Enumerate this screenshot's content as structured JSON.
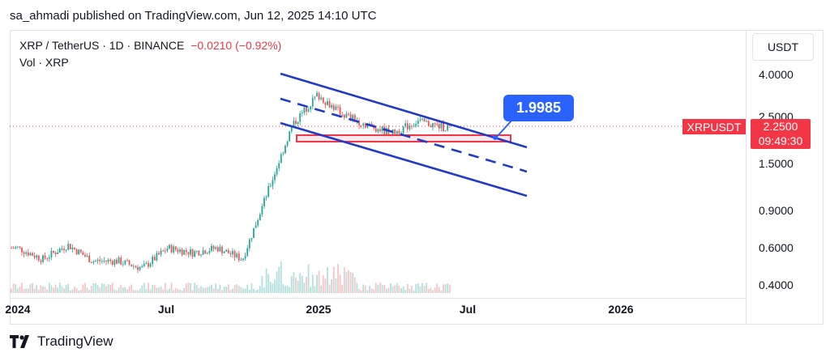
{
  "publisher_line": "sa_ahmadi published on TradingView.com, Jun 12, 2025 14:10 UTC",
  "legend": {
    "symbol_line": "XRP / TetherUS · 1D · BINANCE",
    "change": "−0.0210 (−0.92%)",
    "volume_line": "Vol · XRP"
  },
  "currency_button": "USDT",
  "price_axis": {
    "ticks": [
      "4.0000",
      "2.5000",
      "1.5000",
      "0.9000",
      "0.6000",
      "0.4000"
    ]
  },
  "time_axis": {
    "ticks": [
      "2024",
      "Jul",
      "2025",
      "Jul",
      "2026"
    ]
  },
  "current": {
    "symbol": "XRPUSDT",
    "price": "2.2500",
    "countdown": "09:49:30"
  },
  "callout": "1.9985",
  "brand": "TradingView",
  "colors": {
    "up": "#26a69a",
    "down": "#ef5350",
    "channel": "#1e3cc8",
    "accent": "#2962ff",
    "price_label": "#f23645"
  },
  "chart_data": {
    "type": "candlestick",
    "symbol": "XRP / TetherUS",
    "timeframe": "1D",
    "exchange": "BINANCE",
    "y_scale": "log",
    "y_ticks": [
      4.0,
      2.5,
      1.5,
      0.9,
      0.6,
      0.4
    ],
    "x_ticks": [
      "2024",
      "Jul",
      "2025",
      "Jul",
      "2026"
    ],
    "last_price": 2.25,
    "change": -0.021,
    "change_pct": -0.92,
    "price_path": [
      {
        "date": "2024-01",
        "close": 0.6
      },
      {
        "date": "2024-02",
        "close": 0.53
      },
      {
        "date": "2024-03",
        "close": 0.62
      },
      {
        "date": "2024-04",
        "close": 0.52
      },
      {
        "date": "2024-05",
        "close": 0.52
      },
      {
        "date": "2024-06",
        "close": 0.48
      },
      {
        "date": "2024-07",
        "close": 0.6
      },
      {
        "date": "2024-08",
        "close": 0.57
      },
      {
        "date": "2024-09",
        "close": 0.6
      },
      {
        "date": "2024-10",
        "close": 0.53
      },
      {
        "date": "2024-11",
        "close": 1.1
      },
      {
        "date": "2024-12",
        "close": 2.3
      },
      {
        "date": "2025-01",
        "close": 3.2
      },
      {
        "date": "2025-02",
        "close": 2.6
      },
      {
        "date": "2025-03",
        "close": 2.3
      },
      {
        "date": "2025-04",
        "close": 2.1
      },
      {
        "date": "2025-05",
        "close": 2.4
      },
      {
        "date": "2025-06",
        "close": 2.25
      }
    ],
    "annotations": [
      {
        "type": "descending-channel",
        "style": "solid, upper and lower bounds"
      },
      {
        "type": "channel-midline",
        "style": "dashed"
      },
      {
        "type": "horizontal-support-zone",
        "color": "red"
      },
      {
        "type": "price-callout",
        "value": 1.9985
      }
    ]
  }
}
